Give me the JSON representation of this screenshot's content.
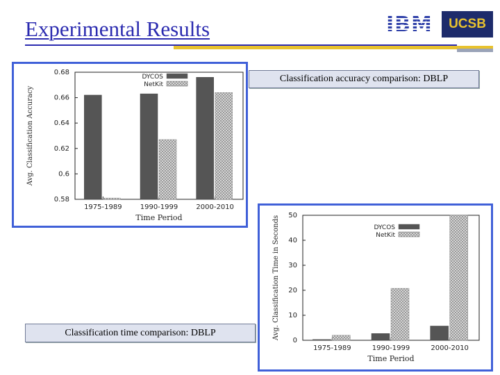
{
  "slide": {
    "title": "Experimental Results",
    "logo_ibm": "IBM",
    "logo_ucsb": "UCSB",
    "caption_accuracy": "Classification accuracy comparison: DBLP",
    "caption_time": "Classification time comparison: DBLP"
  },
  "colors": {
    "accent": "#2b2bb0",
    "gold": "#e8c22e",
    "dycos": "#555555",
    "netkit": "#cccccc"
  },
  "chart_data": [
    {
      "type": "bar",
      "categories": [
        "1975-1989",
        "1990-1999",
        "2000-2010"
      ],
      "series": [
        {
          "name": "DYCOS",
          "values": [
            0.662,
            0.663,
            0.676
          ]
        },
        {
          "name": "NetKit",
          "values": [
            0.581,
            0.627,
            0.664
          ]
        }
      ],
      "xlabel": "Time Period",
      "ylabel": "Avg. Classification Accuracy",
      "ylim": [
        0.58,
        0.68
      ],
      "yticks": [
        "0.58",
        "0.6",
        "0.62",
        "0.64",
        "0.66",
        "0.68"
      ],
      "legend": "top-right"
    },
    {
      "type": "bar",
      "categories": [
        "1975-1989",
        "1990-1999",
        "2000-2010"
      ],
      "series": [
        {
          "name": "DYCOS",
          "values": [
            0.3,
            2.7,
            5.7
          ]
        },
        {
          "name": "NetKit",
          "values": [
            2.0,
            20.8,
            50.5
          ]
        }
      ],
      "xlabel": "Time Period",
      "ylabel": "Avg. Classification Time in Seconds",
      "ylim": [
        0,
        50
      ],
      "yticks": [
        "0",
        "10",
        "20",
        "30",
        "40",
        "50"
      ],
      "legend": "top-right"
    }
  ]
}
